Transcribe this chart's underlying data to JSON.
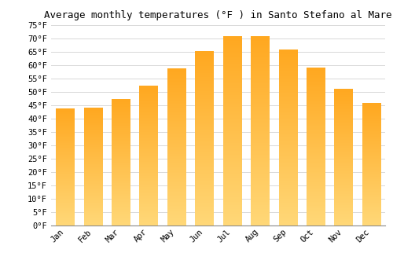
{
  "title": "Average monthly temperatures (°F ) in Santo Stefano al Mare",
  "months": [
    "Jan",
    "Feb",
    "Mar",
    "Apr",
    "May",
    "Jun",
    "Jul",
    "Aug",
    "Sep",
    "Oct",
    "Nov",
    "Dec"
  ],
  "values": [
    43.5,
    44.0,
    47.0,
    52.0,
    58.5,
    65.0,
    70.5,
    70.5,
    65.5,
    59.0,
    51.0,
    45.5
  ],
  "bar_color_main": "#FFA820",
  "bar_color_light": "#FFD878",
  "ylim": [
    0,
    75
  ],
  "yticks": [
    0,
    5,
    10,
    15,
    20,
    25,
    30,
    35,
    40,
    45,
    50,
    55,
    60,
    65,
    70,
    75
  ],
  "background_color": "#ffffff",
  "grid_color": "#d8d8d8",
  "title_fontsize": 9,
  "tick_fontsize": 7.5,
  "font_family": "monospace"
}
